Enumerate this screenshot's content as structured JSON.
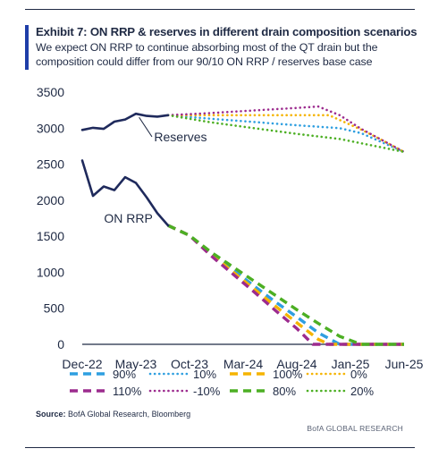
{
  "header": {
    "title": "Exhibit 7: ON RRP  & reserves in different drain composition scenarios",
    "subtitle": "We expect ON RRP to continue absorbing most of the QT drain but the composition could differ from our 90/10 ON RRP / reserves base case"
  },
  "footer": {
    "source_label": "Source:",
    "source_text": "BofA Global Research, Bloomberg",
    "brand": "BofA GLOBAL RESEARCH"
  },
  "chart_data": {
    "type": "line",
    "title": "",
    "xlabel": "",
    "ylabel": "",
    "x_ticks": [
      "Dec-22",
      "May-23",
      "Oct-23",
      "Mar-24",
      "Aug-24",
      "Jan-25",
      "Jun-25"
    ],
    "x_tick_months": [
      0,
      5,
      10,
      15,
      20,
      25,
      30
    ],
    "ylim": [
      0,
      3500
    ],
    "y_ticks": [
      0,
      500,
      1000,
      1500,
      2000,
      2500,
      3000,
      3500
    ],
    "grid": false,
    "annotations": [
      {
        "text": "Reserves",
        "series": "Reserves"
      },
      {
        "text": "ON RRP",
        "series": "ON RRP"
      }
    ],
    "history": [
      {
        "name": "Reserves",
        "color": "#1f2a5c",
        "points": [
          [
            0,
            2975
          ],
          [
            1,
            3005
          ],
          [
            2,
            2990
          ],
          [
            3,
            3090
          ],
          [
            4,
            3120
          ],
          [
            5,
            3200
          ],
          [
            6,
            3170
          ],
          [
            7,
            3160
          ],
          [
            8,
            3180
          ]
        ]
      },
      {
        "name": "ON RRP",
        "color": "#1f2a5c",
        "points": [
          [
            0,
            2550
          ],
          [
            1,
            2060
          ],
          [
            2,
            2190
          ],
          [
            3,
            2140
          ],
          [
            4,
            2320
          ],
          [
            5,
            2240
          ],
          [
            6,
            2040
          ],
          [
            7,
            1820
          ],
          [
            8,
            1650
          ]
        ]
      }
    ],
    "legend_position": "bottom",
    "legend": [
      {
        "name": "90%",
        "style": "dash",
        "color": "#2f9fe0"
      },
      {
        "name": "10%",
        "style": "dot",
        "color": "#2f9fe0"
      },
      {
        "name": "100%",
        "style": "dash",
        "color": "#f5b400"
      },
      {
        "name": "0%",
        "style": "dot",
        "color": "#f5b400"
      },
      {
        "name": "110%",
        "style": "dash",
        "color": "#9c2b8e"
      },
      {
        "name": "-10%",
        "style": "dot",
        "color": "#9c2b8e"
      },
      {
        "name": "80%",
        "style": "dash",
        "color": "#4caf23"
      },
      {
        "name": "20%",
        "style": "dot",
        "color": "#4caf23"
      }
    ],
    "series": [
      {
        "name": "90%",
        "style": "dash",
        "color": "#2f9fe0",
        "points": [
          [
            8,
            1650
          ],
          [
            10,
            1510
          ],
          [
            12,
            1260
          ],
          [
            14,
            1040
          ],
          [
            16,
            810
          ],
          [
            18,
            590
          ],
          [
            20,
            380
          ],
          [
            22,
            160
          ],
          [
            24,
            0
          ],
          [
            30,
            0
          ]
        ]
      },
      {
        "name": "10%",
        "style": "dot",
        "color": "#2f9fe0",
        "points": [
          [
            8,
            3180
          ],
          [
            12,
            3130
          ],
          [
            16,
            3085
          ],
          [
            20,
            3040
          ],
          [
            24,
            3000
          ],
          [
            26,
            2930
          ],
          [
            28,
            2800
          ],
          [
            30,
            2670
          ]
        ]
      },
      {
        "name": "100%",
        "style": "dash",
        "color": "#f5b400",
        "points": [
          [
            8,
            1650
          ],
          [
            10,
            1510
          ],
          [
            12,
            1250
          ],
          [
            14,
            1010
          ],
          [
            16,
            770
          ],
          [
            18,
            530
          ],
          [
            20,
            300
          ],
          [
            22,
            70
          ],
          [
            23,
            0
          ],
          [
            30,
            0
          ]
        ]
      },
      {
        "name": "0%",
        "style": "dot",
        "color": "#f5b400",
        "points": [
          [
            8,
            3180
          ],
          [
            12,
            3180
          ],
          [
            16,
            3180
          ],
          [
            20,
            3180
          ],
          [
            23,
            3180
          ],
          [
            26,
            2980
          ],
          [
            28,
            2830
          ],
          [
            30,
            2670
          ]
        ]
      },
      {
        "name": "110%",
        "style": "dash",
        "color": "#9c2b8e",
        "points": [
          [
            8,
            1650
          ],
          [
            10,
            1510
          ],
          [
            12,
            1230
          ],
          [
            14,
            980
          ],
          [
            16,
            730
          ],
          [
            18,
            470
          ],
          [
            20,
            220
          ],
          [
            21.5,
            0
          ],
          [
            30,
            0
          ]
        ]
      },
      {
        "name": "-10%",
        "style": "dot",
        "color": "#9c2b8e",
        "points": [
          [
            8,
            3180
          ],
          [
            12,
            3210
          ],
          [
            16,
            3245
          ],
          [
            20,
            3280
          ],
          [
            22,
            3300
          ],
          [
            24,
            3180
          ],
          [
            26,
            2990
          ],
          [
            28,
            2830
          ],
          [
            30,
            2670
          ]
        ]
      },
      {
        "name": "80%",
        "style": "dash",
        "color": "#4caf23",
        "points": [
          [
            8,
            1650
          ],
          [
            10,
            1510
          ],
          [
            12,
            1280
          ],
          [
            14,
            1080
          ],
          [
            16,
            880
          ],
          [
            18,
            680
          ],
          [
            20,
            480
          ],
          [
            22,
            290
          ],
          [
            24,
            110
          ],
          [
            26,
            0
          ],
          [
            30,
            0
          ]
        ]
      },
      {
        "name": "20%",
        "style": "dot",
        "color": "#4caf23",
        "points": [
          [
            8,
            3180
          ],
          [
            12,
            3080
          ],
          [
            16,
            3000
          ],
          [
            20,
            2920
          ],
          [
            24,
            2850
          ],
          [
            26,
            2790
          ],
          [
            28,
            2730
          ],
          [
            30,
            2670
          ]
        ]
      }
    ]
  }
}
